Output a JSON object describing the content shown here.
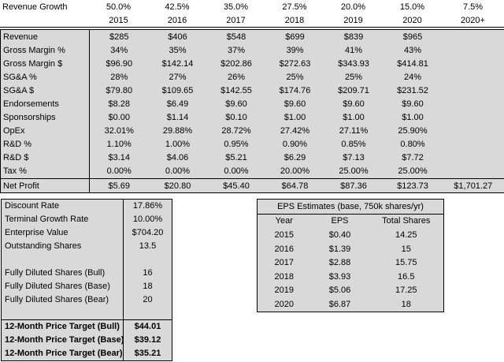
{
  "growth_header": {
    "label": "Revenue Growth",
    "values": [
      "50.0%",
      "42.5%",
      "35.0%",
      "27.5%",
      "20.0%",
      "15.0%",
      "7.5%"
    ]
  },
  "years": [
    "2015",
    "2016",
    "2017",
    "2018",
    "2019",
    "2020",
    "2020+"
  ],
  "rows": [
    {
      "label": "Revenue",
      "values": [
        "$285",
        "$406",
        "$548",
        "$699",
        "$839",
        "$965",
        ""
      ]
    },
    {
      "label": "Gross Margin %",
      "values": [
        "34%",
        "35%",
        "37%",
        "39%",
        "41%",
        "43%",
        ""
      ]
    },
    {
      "label": "Gross Margin $",
      "values": [
        "$96.90",
        "$142.14",
        "$202.86",
        "$272.63",
        "$343.93",
        "$414.81",
        ""
      ]
    },
    {
      "label": "SG&A %",
      "values": [
        "28%",
        "27%",
        "26%",
        "25%",
        "25%",
        "24%",
        ""
      ]
    },
    {
      "label": "SG&A $",
      "values": [
        "$79.80",
        "$109.65",
        "$142.55",
        "$174.76",
        "$209.71",
        "$231.52",
        ""
      ]
    },
    {
      "label": "Endorsements",
      "values": [
        "$8.28",
        "$6.49",
        "$9.60",
        "$9.60",
        "$9.60",
        "$9.60",
        ""
      ]
    },
    {
      "label": "Sponsorships",
      "values": [
        "$0.00",
        "$1.14",
        "$0.10",
        "$1.00",
        "$1.00",
        "$1.00",
        ""
      ]
    },
    {
      "label": "OpEx",
      "values": [
        "32.01%",
        "29.88%",
        "28.72%",
        "27.42%",
        "27.11%",
        "25.90%",
        ""
      ]
    },
    {
      "label": "R&D %",
      "values": [
        "1.10%",
        "1.00%",
        "0.95%",
        "0.90%",
        "0.85%",
        "0.80%",
        ""
      ]
    },
    {
      "label": "R&D $",
      "values": [
        "$3.14",
        "$4.06",
        "$5.21",
        "$6.29",
        "$7.13",
        "$7.72",
        ""
      ]
    },
    {
      "label": "Tax %",
      "values": [
        "0.00%",
        "0.00%",
        "0.00%",
        "20.00%",
        "25.00%",
        "25.00%",
        ""
      ]
    },
    {
      "label": "Net Profit",
      "values": [
        "$5.69",
        "$20.80",
        "$45.40",
        "$64.78",
        "$87.36",
        "$123.73",
        "$1,701.27"
      ]
    }
  ],
  "valuation": [
    {
      "label": "Discount Rate",
      "value": "17.86%"
    },
    {
      "label": "Terminal Growth Rate",
      "value": "10.00%"
    },
    {
      "label": "Enterprise Value",
      "value": "$704.20"
    },
    {
      "label": "Outstanding Shares",
      "value": "13.5"
    },
    {
      "label": "",
      "value": ""
    },
    {
      "label": "Fully Diluted Shares (Bull)",
      "value": "16"
    },
    {
      "label": "Fully Diluted Shares (Base)",
      "value": "18"
    },
    {
      "label": "Fully Diluted Shares (Bear)",
      "value": "20"
    },
    {
      "label": "",
      "value": ""
    },
    {
      "label": "12-Month Price Target (Bull)",
      "value": "$44.01"
    },
    {
      "label": "12-Month Price Target (Base)",
      "value": "$39.12"
    },
    {
      "label": "12-Month Price Target (Bear)",
      "value": "$35.21"
    }
  ],
  "eps": {
    "title": "EPS Estimates (base, 750k shares/yr)",
    "headers": [
      "Year",
      "EPS",
      "Total Shares"
    ],
    "rows": [
      [
        "2015",
        "$0.40",
        "14.25"
      ],
      [
        "2016",
        "$1.39",
        "15"
      ],
      [
        "2017",
        "$2.88",
        "15.75"
      ],
      [
        "2018",
        "$3.93",
        "16.5"
      ],
      [
        "2019",
        "$5.06",
        "17.25"
      ],
      [
        "2020",
        "$6.87",
        "18"
      ]
    ]
  }
}
